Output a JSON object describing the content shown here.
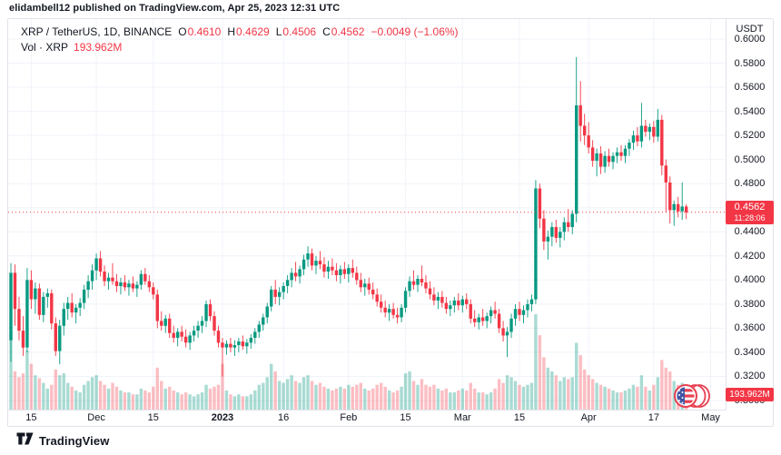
{
  "header": {
    "caption": "elidambell12 published on TradingView.com, Apr 25, 2023 12:31 UTC"
  },
  "legend": {
    "symbol": "XRP / TetherUS, 1D, BINANCE",
    "o_label": "O",
    "o": "0.4610",
    "h_label": "H",
    "h": "0.4629",
    "l_label": "L",
    "l": "0.4506",
    "c_label": "C",
    "c": "0.4562",
    "change": "−0.0049 (−1.06%)",
    "vol_label": "Vol · XRP",
    "vol_value": "193.962M"
  },
  "price_axis": {
    "currency": "USDT",
    "ticks": [
      "0.6000",
      "0.5800",
      "0.5600",
      "0.5400",
      "0.5200",
      "0.5000",
      "0.4800",
      "0.4600",
      "0.4400",
      "0.4200",
      "0.4000",
      "0.3800",
      "0.3600",
      "0.3400",
      "0.3200",
      "0.3000"
    ],
    "price_badge": {
      "price": "0.4562",
      "countdown": "11:28:06"
    },
    "volume_badge": "193.962M"
  },
  "time_axis": {
    "ticks": [
      {
        "label": "15",
        "i": 5
      },
      {
        "label": "Dec",
        "i": 21
      },
      {
        "label": "15",
        "i": 35
      },
      {
        "label": "2023",
        "i": 52,
        "bold": true
      },
      {
        "label": "16",
        "i": 67
      },
      {
        "label": "Feb",
        "i": 83
      },
      {
        "label": "15",
        "i": 97
      },
      {
        "label": "Mar",
        "i": 111
      },
      {
        "label": "15",
        "i": 125
      },
      {
        "label": "Apr",
        "i": 142
      },
      {
        "label": "17",
        "i": 158
      },
      {
        "label": "May",
        "i": 172
      }
    ]
  },
  "footer": {
    "brand": "TradingView"
  },
  "colors": {
    "up": "#089981",
    "down": "#f23645",
    "vol_up": "rgba(8,153,129,0.35)",
    "vol_down": "rgba(242,54,69,0.32)",
    "grid": "#f0f3fa",
    "axis_border": "#e0e3eb",
    "text": "#131722",
    "accent_red": "#f23645"
  },
  "chart_data": {
    "type": "candlestick",
    "title": "XRP / TetherUS, 1D, BINANCE",
    "last_price": 0.4562,
    "last_volume": "193.962M",
    "ohlc_last": {
      "open": 0.461,
      "high": 0.4629,
      "low": 0.4506,
      "close": 0.4562
    },
    "change": -0.0049,
    "change_pct": -1.06,
    "ylim": [
      0.3,
      0.6
    ],
    "grid": true,
    "x_tick_labels": [
      "15",
      "Dec",
      "15",
      "2023",
      "16",
      "Feb",
      "15",
      "Mar",
      "15",
      "Apr",
      "17",
      "May"
    ],
    "candles_format": [
      "open",
      "high",
      "low",
      "close",
      "relative_volume"
    ],
    "candles": [
      [
        0.35,
        0.414,
        0.332,
        0.406,
        0.82
      ],
      [
        0.406,
        0.413,
        0.362,
        0.376,
        0.4
      ],
      [
        0.376,
        0.386,
        0.35,
        0.358,
        0.34
      ],
      [
        0.358,
        0.37,
        0.337,
        0.344,
        0.38
      ],
      [
        0.344,
        0.41,
        0.34,
        0.4,
        0.62
      ],
      [
        0.4,
        0.408,
        0.376,
        0.384,
        0.48
      ],
      [
        0.384,
        0.398,
        0.372,
        0.393,
        0.36
      ],
      [
        0.393,
        0.397,
        0.367,
        0.371,
        0.33
      ],
      [
        0.371,
        0.39,
        0.365,
        0.386,
        0.28
      ],
      [
        0.386,
        0.393,
        0.377,
        0.389,
        0.22
      ],
      [
        0.389,
        0.392,
        0.359,
        0.364,
        0.26
      ],
      [
        0.364,
        0.369,
        0.337,
        0.341,
        0.42
      ],
      [
        0.341,
        0.367,
        0.33,
        0.362,
        0.36
      ],
      [
        0.362,
        0.381,
        0.354,
        0.376,
        0.38
      ],
      [
        0.376,
        0.386,
        0.367,
        0.381,
        0.28
      ],
      [
        0.381,
        0.389,
        0.369,
        0.373,
        0.24
      ],
      [
        0.373,
        0.38,
        0.364,
        0.377,
        0.2
      ],
      [
        0.377,
        0.385,
        0.37,
        0.381,
        0.18
      ],
      [
        0.381,
        0.396,
        0.376,
        0.392,
        0.26
      ],
      [
        0.392,
        0.404,
        0.385,
        0.399,
        0.3
      ],
      [
        0.399,
        0.413,
        0.392,
        0.408,
        0.34
      ],
      [
        0.408,
        0.422,
        0.4,
        0.418,
        0.36
      ],
      [
        0.418,
        0.424,
        0.403,
        0.407,
        0.3
      ],
      [
        0.407,
        0.412,
        0.395,
        0.399,
        0.26
      ],
      [
        0.399,
        0.406,
        0.392,
        0.402,
        0.22
      ],
      [
        0.402,
        0.414,
        0.396,
        0.399,
        0.28
      ],
      [
        0.399,
        0.405,
        0.39,
        0.395,
        0.24
      ],
      [
        0.395,
        0.402,
        0.388,
        0.398,
        0.2
      ],
      [
        0.398,
        0.404,
        0.391,
        0.394,
        0.18
      ],
      [
        0.394,
        0.4,
        0.387,
        0.397,
        0.18
      ],
      [
        0.397,
        0.403,
        0.39,
        0.393,
        0.16
      ],
      [
        0.393,
        0.399,
        0.386,
        0.396,
        0.16
      ],
      [
        0.396,
        0.408,
        0.392,
        0.405,
        0.22
      ],
      [
        0.405,
        0.41,
        0.396,
        0.399,
        0.2
      ],
      [
        0.399,
        0.404,
        0.39,
        0.394,
        0.18
      ],
      [
        0.394,
        0.398,
        0.384,
        0.388,
        0.24
      ],
      [
        0.388,
        0.392,
        0.36,
        0.366,
        0.44
      ],
      [
        0.366,
        0.374,
        0.358,
        0.362,
        0.3
      ],
      [
        0.362,
        0.371,
        0.356,
        0.368,
        0.22
      ],
      [
        0.368,
        0.372,
        0.352,
        0.356,
        0.24
      ],
      [
        0.356,
        0.362,
        0.348,
        0.352,
        0.2
      ],
      [
        0.352,
        0.36,
        0.345,
        0.357,
        0.18
      ],
      [
        0.357,
        0.362,
        0.349,
        0.353,
        0.16
      ],
      [
        0.353,
        0.359,
        0.344,
        0.348,
        0.18
      ],
      [
        0.348,
        0.357,
        0.342,
        0.354,
        0.16
      ],
      [
        0.354,
        0.362,
        0.349,
        0.358,
        0.14
      ],
      [
        0.358,
        0.366,
        0.352,
        0.362,
        0.16
      ],
      [
        0.362,
        0.37,
        0.356,
        0.366,
        0.18
      ],
      [
        0.366,
        0.383,
        0.361,
        0.38,
        0.26
      ],
      [
        0.38,
        0.384,
        0.366,
        0.37,
        0.22
      ],
      [
        0.37,
        0.374,
        0.354,
        0.358,
        0.24
      ],
      [
        0.358,
        0.362,
        0.344,
        0.348,
        0.26
      ],
      [
        0.348,
        0.352,
        0.32,
        0.344,
        0.48
      ],
      [
        0.344,
        0.35,
        0.338,
        0.347,
        0.2
      ],
      [
        0.347,
        0.352,
        0.34,
        0.344,
        0.16
      ],
      [
        0.344,
        0.35,
        0.337,
        0.346,
        0.14
      ],
      [
        0.346,
        0.352,
        0.34,
        0.349,
        0.16
      ],
      [
        0.349,
        0.354,
        0.342,
        0.345,
        0.14
      ],
      [
        0.345,
        0.351,
        0.339,
        0.348,
        0.14
      ],
      [
        0.348,
        0.355,
        0.343,
        0.352,
        0.16
      ],
      [
        0.352,
        0.36,
        0.347,
        0.357,
        0.2
      ],
      [
        0.357,
        0.366,
        0.352,
        0.363,
        0.26
      ],
      [
        0.363,
        0.372,
        0.358,
        0.369,
        0.28
      ],
      [
        0.369,
        0.381,
        0.364,
        0.378,
        0.34
      ],
      [
        0.378,
        0.395,
        0.374,
        0.392,
        0.48
      ],
      [
        0.392,
        0.4,
        0.38,
        0.386,
        0.4
      ],
      [
        0.386,
        0.394,
        0.379,
        0.39,
        0.3
      ],
      [
        0.39,
        0.398,
        0.384,
        0.395,
        0.28
      ],
      [
        0.395,
        0.404,
        0.389,
        0.4,
        0.32
      ],
      [
        0.4,
        0.41,
        0.394,
        0.406,
        0.36
      ],
      [
        0.406,
        0.415,
        0.399,
        0.403,
        0.3
      ],
      [
        0.403,
        0.412,
        0.397,
        0.409,
        0.28
      ],
      [
        0.409,
        0.421,
        0.404,
        0.417,
        0.34
      ],
      [
        0.417,
        0.428,
        0.411,
        0.422,
        0.36
      ],
      [
        0.422,
        0.426,
        0.408,
        0.412,
        0.3
      ],
      [
        0.412,
        0.42,
        0.405,
        0.416,
        0.26
      ],
      [
        0.416,
        0.424,
        0.409,
        0.413,
        0.28
      ],
      [
        0.413,
        0.419,
        0.402,
        0.407,
        0.24
      ],
      [
        0.407,
        0.416,
        0.401,
        0.411,
        0.22
      ],
      [
        0.411,
        0.418,
        0.404,
        0.408,
        0.2
      ],
      [
        0.408,
        0.414,
        0.399,
        0.404,
        0.22
      ],
      [
        0.404,
        0.412,
        0.397,
        0.409,
        0.24
      ],
      [
        0.409,
        0.415,
        0.401,
        0.405,
        0.22
      ],
      [
        0.405,
        0.413,
        0.398,
        0.41,
        0.26
      ],
      [
        0.41,
        0.417,
        0.402,
        0.406,
        0.24
      ],
      [
        0.406,
        0.411,
        0.396,
        0.4,
        0.26
      ],
      [
        0.4,
        0.406,
        0.39,
        0.394,
        0.28
      ],
      [
        0.394,
        0.401,
        0.387,
        0.397,
        0.22
      ],
      [
        0.397,
        0.402,
        0.388,
        0.392,
        0.2
      ],
      [
        0.392,
        0.398,
        0.384,
        0.388,
        0.22
      ],
      [
        0.388,
        0.393,
        0.378,
        0.382,
        0.26
      ],
      [
        0.382,
        0.388,
        0.373,
        0.377,
        0.28
      ],
      [
        0.377,
        0.383,
        0.369,
        0.373,
        0.24
      ],
      [
        0.373,
        0.38,
        0.366,
        0.376,
        0.2
      ],
      [
        0.376,
        0.381,
        0.368,
        0.371,
        0.18
      ],
      [
        0.371,
        0.377,
        0.364,
        0.369,
        0.2
      ],
      [
        0.369,
        0.38,
        0.365,
        0.377,
        0.24
      ],
      [
        0.377,
        0.394,
        0.373,
        0.391,
        0.38
      ],
      [
        0.391,
        0.403,
        0.386,
        0.399,
        0.4
      ],
      [
        0.399,
        0.408,
        0.392,
        0.396,
        0.3
      ],
      [
        0.396,
        0.404,
        0.39,
        0.401,
        0.26
      ],
      [
        0.401,
        0.412,
        0.395,
        0.398,
        0.32
      ],
      [
        0.398,
        0.404,
        0.389,
        0.393,
        0.26
      ],
      [
        0.393,
        0.399,
        0.384,
        0.388,
        0.24
      ],
      [
        0.388,
        0.394,
        0.379,
        0.383,
        0.26
      ],
      [
        0.383,
        0.39,
        0.376,
        0.386,
        0.22
      ],
      [
        0.386,
        0.391,
        0.377,
        0.381,
        0.2
      ],
      [
        0.381,
        0.386,
        0.372,
        0.376,
        0.22
      ],
      [
        0.376,
        0.383,
        0.37,
        0.379,
        0.18
      ],
      [
        0.379,
        0.386,
        0.373,
        0.383,
        0.18
      ],
      [
        0.383,
        0.389,
        0.375,
        0.379,
        0.2
      ],
      [
        0.379,
        0.387,
        0.373,
        0.384,
        0.22
      ],
      [
        0.384,
        0.389,
        0.376,
        0.38,
        0.2
      ],
      [
        0.38,
        0.384,
        0.364,
        0.368,
        0.28
      ],
      [
        0.368,
        0.375,
        0.361,
        0.365,
        0.22
      ],
      [
        0.365,
        0.372,
        0.359,
        0.369,
        0.18
      ],
      [
        0.369,
        0.376,
        0.362,
        0.366,
        0.18
      ],
      [
        0.366,
        0.373,
        0.36,
        0.37,
        0.16
      ],
      [
        0.37,
        0.378,
        0.364,
        0.375,
        0.18
      ],
      [
        0.375,
        0.382,
        0.368,
        0.372,
        0.22
      ],
      [
        0.372,
        0.376,
        0.356,
        0.36,
        0.32
      ],
      [
        0.36,
        0.366,
        0.349,
        0.354,
        0.28
      ],
      [
        0.354,
        0.361,
        0.336,
        0.357,
        0.36
      ],
      [
        0.357,
        0.372,
        0.352,
        0.368,
        0.34
      ],
      [
        0.368,
        0.38,
        0.362,
        0.376,
        0.3
      ],
      [
        0.376,
        0.382,
        0.366,
        0.371,
        0.26
      ],
      [
        0.371,
        0.379,
        0.364,
        0.375,
        0.24
      ],
      [
        0.375,
        0.384,
        0.369,
        0.38,
        0.26
      ],
      [
        0.38,
        0.388,
        0.374,
        0.384,
        0.28
      ],
      [
        0.384,
        0.483,
        0.38,
        0.476,
        1.0
      ],
      [
        0.476,
        0.48,
        0.443,
        0.451,
        0.78
      ],
      [
        0.451,
        0.458,
        0.425,
        0.432,
        0.55
      ],
      [
        0.432,
        0.441,
        0.417,
        0.436,
        0.44
      ],
      [
        0.436,
        0.448,
        0.428,
        0.444,
        0.4
      ],
      [
        0.444,
        0.45,
        0.431,
        0.435,
        0.36
      ],
      [
        0.435,
        0.444,
        0.427,
        0.44,
        0.3
      ],
      [
        0.44,
        0.452,
        0.433,
        0.448,
        0.34
      ],
      [
        0.448,
        0.459,
        0.44,
        0.444,
        0.32
      ],
      [
        0.444,
        0.458,
        0.438,
        0.455,
        0.34
      ],
      [
        0.455,
        0.585,
        0.448,
        0.545,
        0.7
      ],
      [
        0.545,
        0.565,
        0.515,
        0.528,
        0.57
      ],
      [
        0.528,
        0.538,
        0.512,
        0.52,
        0.42
      ],
      [
        0.52,
        0.531,
        0.505,
        0.51,
        0.36
      ],
      [
        0.51,
        0.516,
        0.494,
        0.499,
        0.32
      ],
      [
        0.499,
        0.509,
        0.486,
        0.505,
        0.28
      ],
      [
        0.505,
        0.511,
        0.488,
        0.494,
        0.26
      ],
      [
        0.494,
        0.507,
        0.489,
        0.503,
        0.24
      ],
      [
        0.503,
        0.509,
        0.494,
        0.498,
        0.22
      ],
      [
        0.498,
        0.506,
        0.492,
        0.503,
        0.2
      ],
      [
        0.503,
        0.51,
        0.497,
        0.506,
        0.18
      ],
      [
        0.506,
        0.512,
        0.499,
        0.503,
        0.18
      ],
      [
        0.503,
        0.512,
        0.497,
        0.509,
        0.2
      ],
      [
        0.509,
        0.517,
        0.503,
        0.514,
        0.22
      ],
      [
        0.514,
        0.524,
        0.508,
        0.52,
        0.26
      ],
      [
        0.52,
        0.527,
        0.511,
        0.515,
        0.24
      ],
      [
        0.515,
        0.547,
        0.51,
        0.528,
        0.36
      ],
      [
        0.528,
        0.533,
        0.519,
        0.523,
        0.24
      ],
      [
        0.523,
        0.53,
        0.516,
        0.527,
        0.2
      ],
      [
        0.527,
        0.532,
        0.514,
        0.519,
        0.26
      ],
      [
        0.519,
        0.542,
        0.515,
        0.533,
        0.34
      ],
      [
        0.533,
        0.537,
        0.487,
        0.495,
        0.52
      ],
      [
        0.495,
        0.5,
        0.456,
        0.481,
        0.44
      ],
      [
        0.481,
        0.486,
        0.447,
        0.458,
        0.4
      ],
      [
        0.458,
        0.466,
        0.445,
        0.463,
        0.3
      ],
      [
        0.463,
        0.469,
        0.452,
        0.457,
        0.26
      ],
      [
        0.457,
        0.481,
        0.45,
        0.461,
        0.28
      ],
      [
        0.461,
        0.4629,
        0.4506,
        0.4562,
        0.24
      ]
    ]
  }
}
